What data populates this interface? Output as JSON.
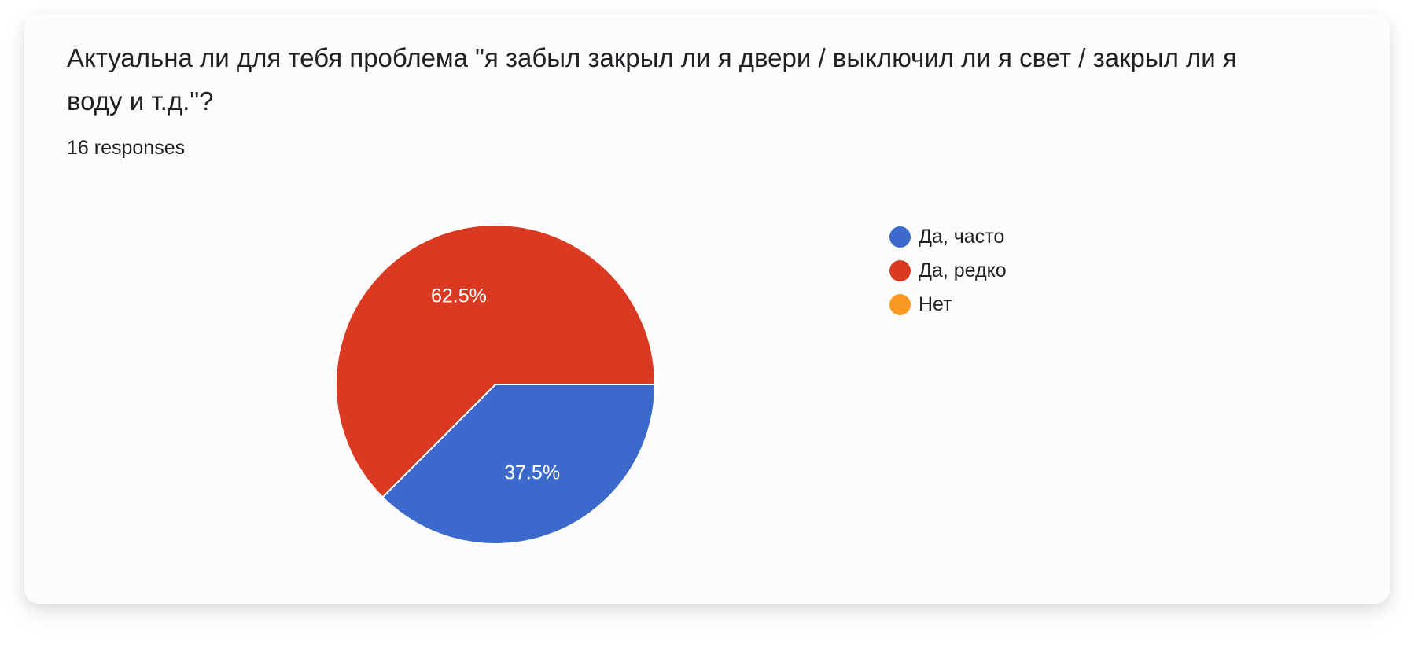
{
  "question": {
    "title": "Актуальна ли для тебя проблема \"я забыл закрыл ли я двери / выключил ли я свет / закрыл ли я воду и т.д.\"?",
    "responses": "16 responses"
  },
  "chart_data": {
    "type": "pie",
    "title": "Актуальна ли для тебя проблема \"я забыл закрыл ли я двери / выключил ли я свет / закрыл ли я воду и т.д.\"?",
    "categories": [
      "Да, часто",
      "Да, редко",
      "Нет"
    ],
    "values": [
      37.5,
      62.5,
      0
    ],
    "labels": [
      "37.5%",
      "62.5%",
      ""
    ],
    "colors": [
      "#3b69cc",
      "#d93a21",
      "#fa9a22"
    ],
    "legend_position": "right"
  }
}
